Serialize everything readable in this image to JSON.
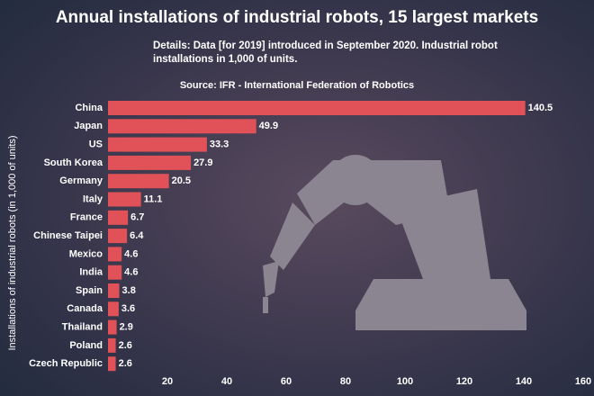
{
  "chart_data": {
    "type": "bar",
    "orientation": "horizontal",
    "title": "Annual installations of industrial robots, 15 largest markets",
    "subtitle": "Details: Data [for 2019] introduced in September 2020. Industrial robot installations in 1,000 of units.",
    "source": "Source: IFR - International Federation of Robotics",
    "y_label": "Installations of industrial robots (in 1,000 of units)",
    "categories": [
      "China",
      "Japan",
      "US",
      "South Korea",
      "Germany",
      "Italy",
      "France",
      "Chinese Taipei",
      "Mexico",
      "India",
      "Spain",
      "Canada",
      "Thailand",
      "Poland",
      "Czech Republic"
    ],
    "values": [
      140.5,
      49.9,
      33.3,
      27.9,
      20.5,
      11.1,
      6.7,
      6.4,
      4.6,
      4.6,
      3.8,
      3.6,
      2.9,
      2.6,
      2.6
    ],
    "color": "#e05257",
    "xlim": [
      0,
      160
    ],
    "xticks": [
      20,
      40,
      60,
      80,
      100,
      120,
      140,
      160
    ]
  }
}
